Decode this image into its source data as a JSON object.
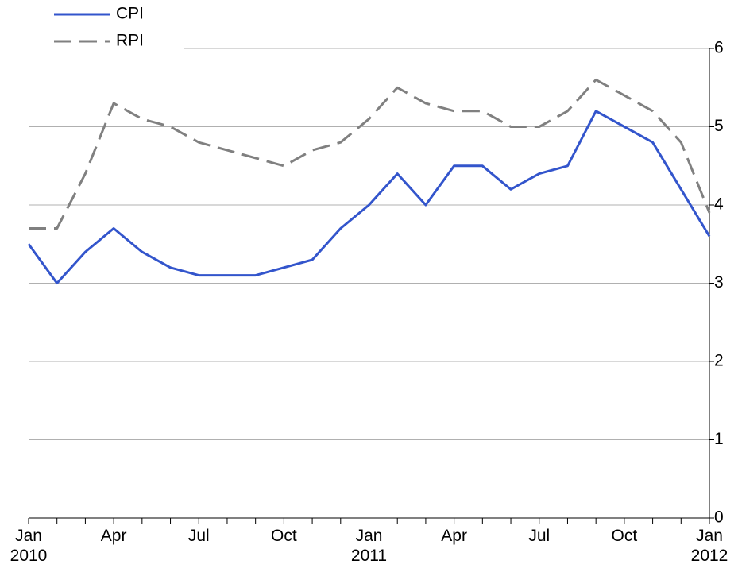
{
  "chart_data": {
    "type": "line",
    "categories": [
      "Jan\n2010",
      null,
      null,
      "Apr",
      null,
      null,
      "Jul",
      null,
      null,
      "Oct",
      null,
      null,
      "Jan\n2011",
      null,
      null,
      "Apr",
      null,
      null,
      "Jul",
      null,
      null,
      "Oct",
      null,
      null,
      "Jan\n2012"
    ],
    "series": [
      {
        "name": "CPI",
        "color": "#3355cc",
        "dashed": false,
        "values": [
          3.5,
          3.0,
          3.4,
          3.7,
          3.4,
          3.2,
          3.1,
          3.1,
          3.1,
          3.2,
          3.3,
          3.7,
          4.0,
          4.4,
          4.0,
          4.5,
          4.5,
          4.2,
          4.4,
          4.5,
          5.2,
          5.0,
          4.8,
          4.2,
          3.6
        ]
      },
      {
        "name": "RPI",
        "color": "#808080",
        "dashed": true,
        "values": [
          3.7,
          3.7,
          4.4,
          5.3,
          5.1,
          5.0,
          4.8,
          4.7,
          4.6,
          4.5,
          4.7,
          4.8,
          5.1,
          5.5,
          5.3,
          5.2,
          5.2,
          5.0,
          5.0,
          5.2,
          5.6,
          5.4,
          5.2,
          4.8,
          3.9
        ]
      }
    ],
    "ylim": [
      0,
      6
    ],
    "yticks": [
      0,
      1,
      2,
      3,
      4,
      5,
      6
    ],
    "grid": true,
    "y_axis_side": "right",
    "legend": "top-left"
  }
}
